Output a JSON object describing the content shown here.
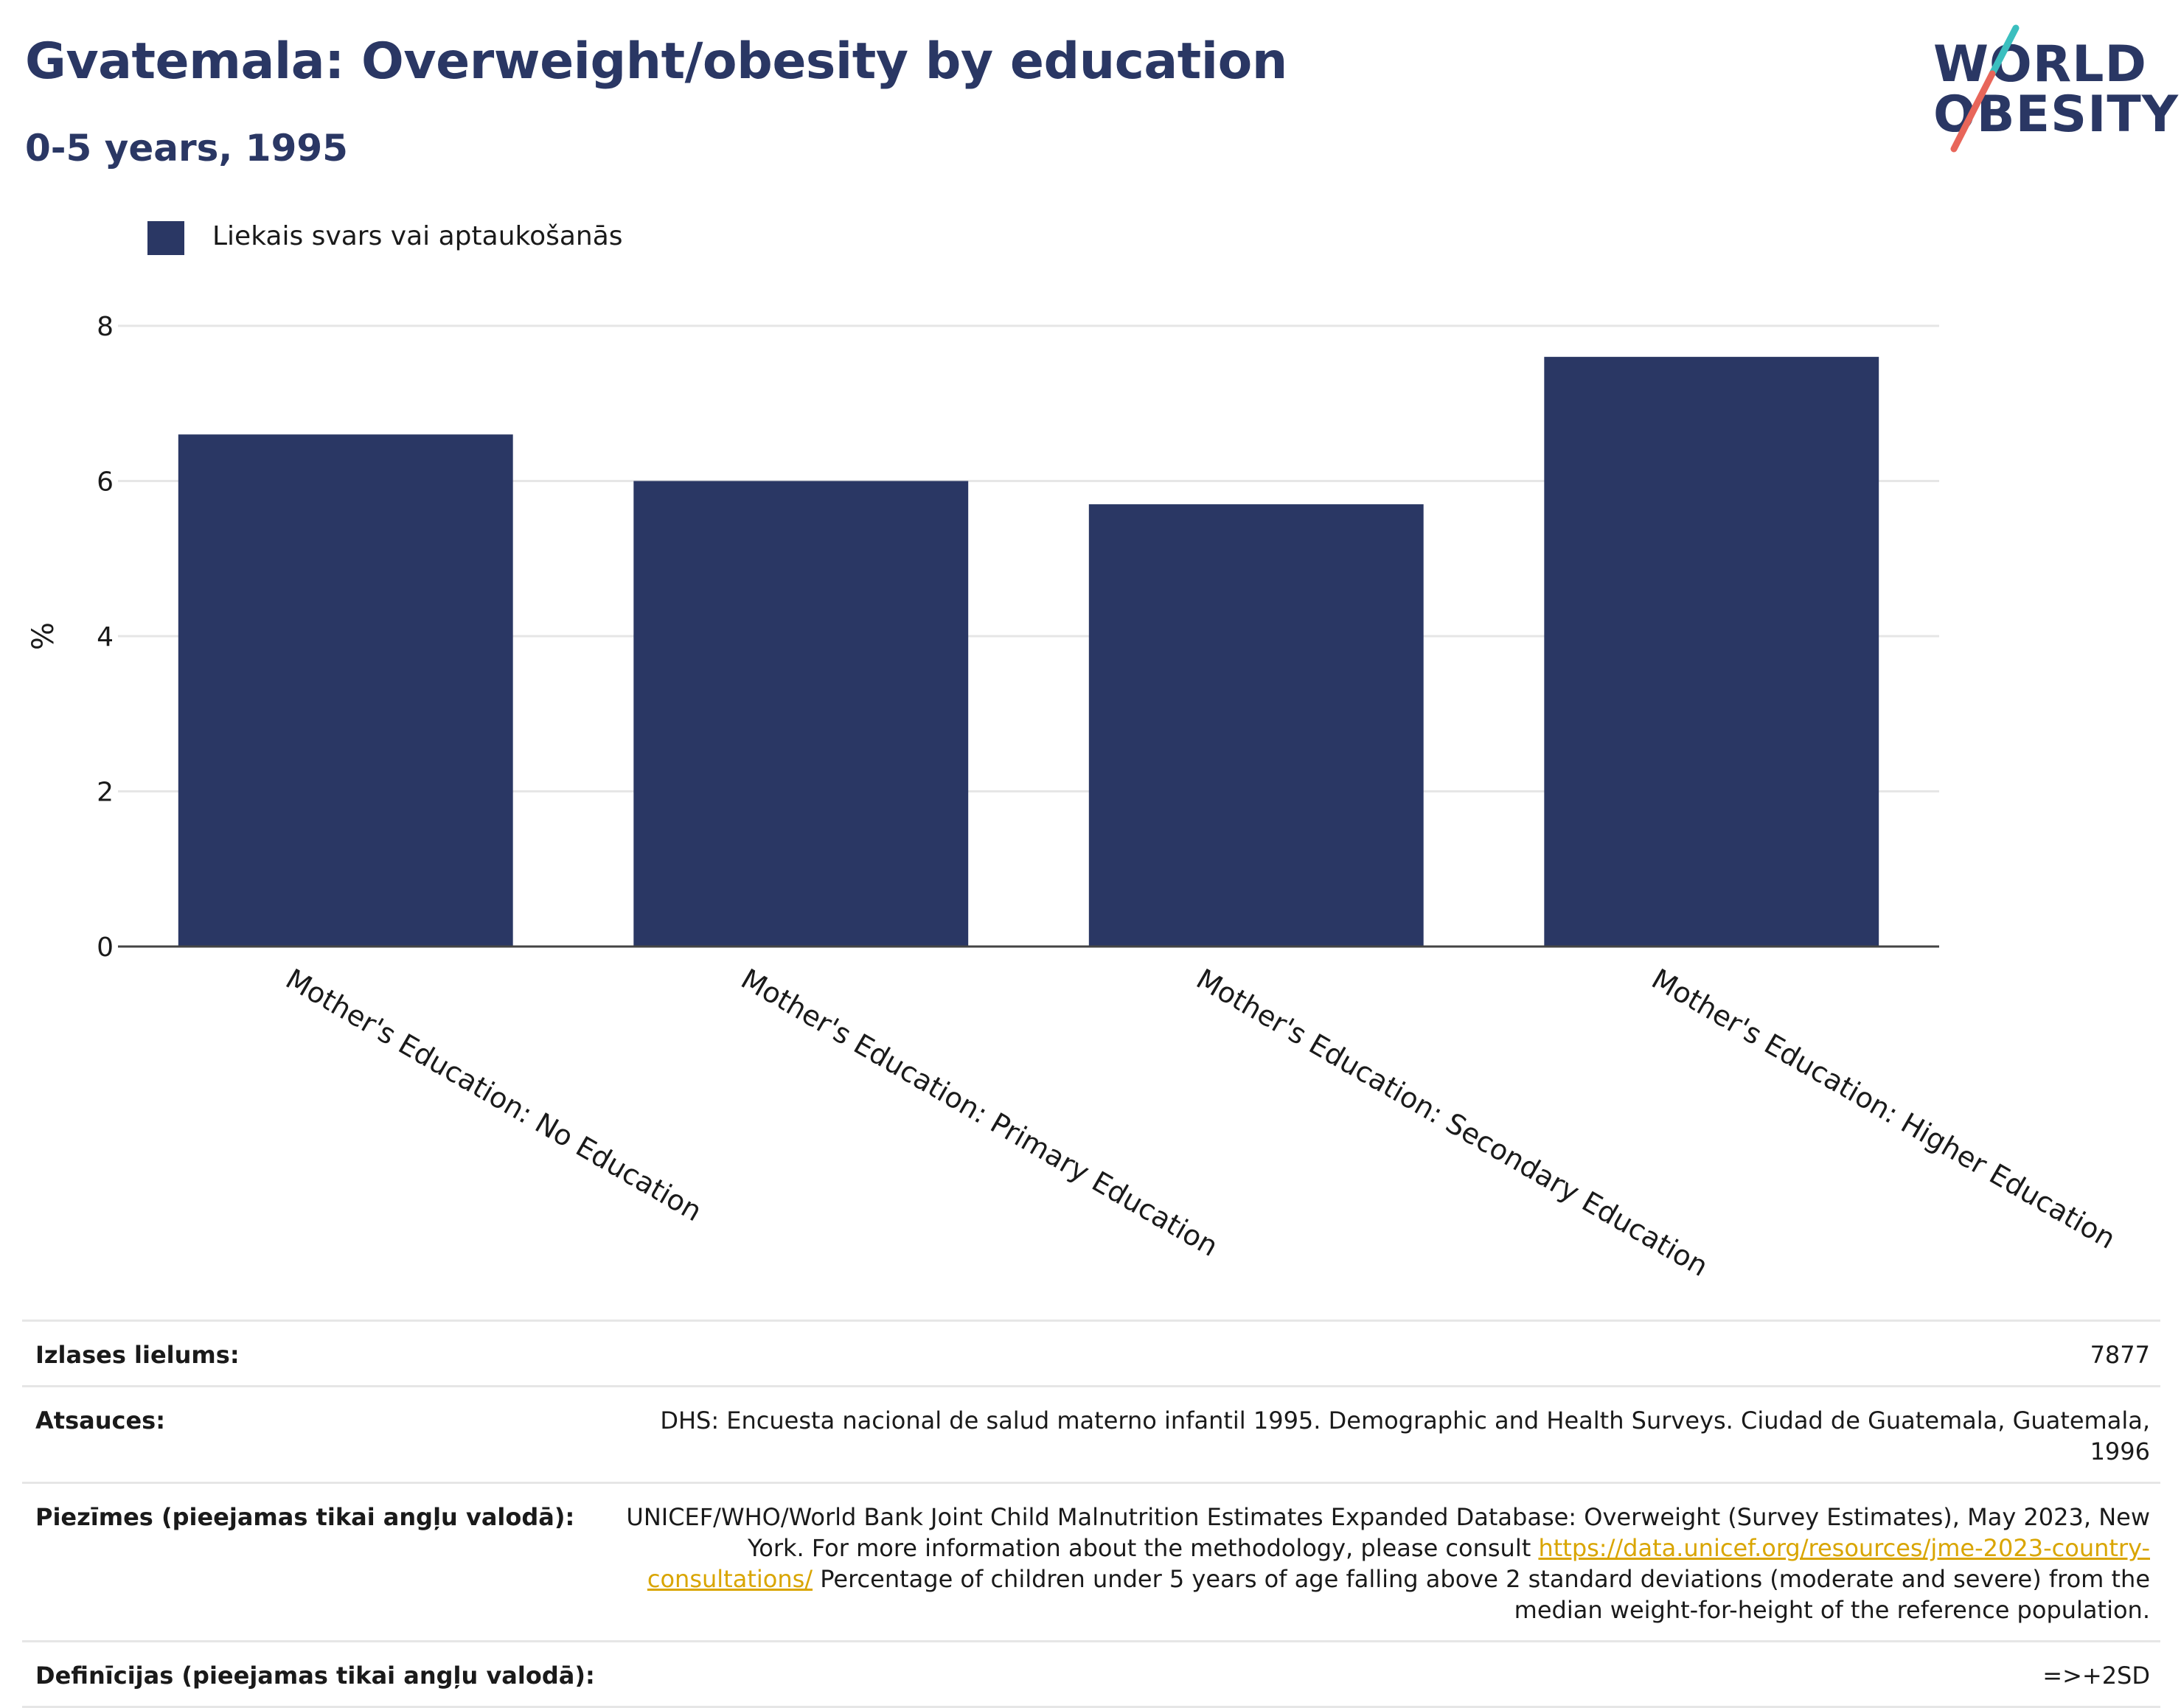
{
  "header": {
    "title": "Gvatemala: Overweight/obesity by education",
    "subtitle": "0-5 years, 1995"
  },
  "logo": {
    "line1": "WORLD",
    "line2": "OBESITY"
  },
  "colors": {
    "bar": "#2a3764",
    "title": "#2a3764",
    "link": "#d9a500",
    "logo_teal": "#3bbfbf",
    "logo_coral": "#e8665a"
  },
  "chart_data": {
    "type": "bar",
    "categories": [
      "Mother's Education: No Education",
      "Mother's Education: Primary Education",
      "Mother's Education: Secondary Education",
      "Mother's Education: Higher Education"
    ],
    "series": [
      {
        "name": "Liekais svars vai aptaukošanās",
        "values": [
          6.6,
          6.0,
          5.7,
          7.6
        ]
      }
    ],
    "ylabel": "%",
    "ylim": [
      0,
      8
    ],
    "yticks": [
      0,
      2,
      4,
      6,
      8
    ],
    "grid": true,
    "legend": "top-left"
  },
  "meta": {
    "sample_label": "Izlases lielums:",
    "sample_value": "7877",
    "sources_label": "Atsauces:",
    "sources_value": "DHS: Encuesta nacional de salud materno infantil 1995. Demographic and Health Surveys. Ciudad de Guatemala, Guatemala, 1996",
    "notes_label": "Piezīmes (pieejamas tikai angļu valodā):",
    "notes_text1": "UNICEF/WHO/World Bank Joint Child Malnutrition Estimates Expanded Database: Overweight (Survey Estimates), May 2023, New York. For more information about the methodology, please consult",
    "notes_link": "https://data.unicef.org/resources/jme-2023-country-consultations/",
    "notes_text2": "Percentage of children under 5 years of age falling above 2 standard deviations (moderate and severe) from the median weight-for-height of the reference population.",
    "definitions_label": "Definīcijas (pieejamas tikai angļu valodā):",
    "definitions_value": "=>+2SD"
  }
}
